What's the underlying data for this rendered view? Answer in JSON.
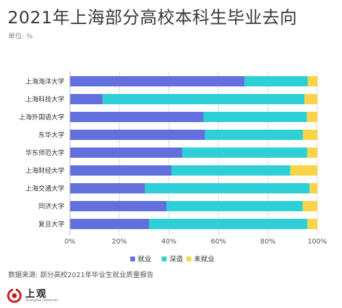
{
  "header": {
    "title": "2021年上海部分高校本科生毕业去向",
    "unit": "单位: %"
  },
  "footer": {
    "source": "数据来源: 部分高校2021年毕业生就业质量报告",
    "logo_text": "上观",
    "logo_sub": "Shanghai Observer"
  },
  "colors": {
    "employment": "#6270de",
    "further_study": "#2ecfd6",
    "unemployed": "#f9d448"
  },
  "chart_data": {
    "type": "bar",
    "orientation": "horizontal",
    "stacked": true,
    "categories": [
      "上海海洋大学",
      "上海科技大学",
      "上海外国语大学",
      "东华大学",
      "华东师范大学",
      "上海财经大学",
      "上海交通大学",
      "同济大学",
      "复旦大学"
    ],
    "series": [
      {
        "name": "就业",
        "values": [
          70.6,
          13.2,
          54.0,
          54.6,
          45.4,
          41.1,
          30.4,
          39.1,
          32.0
        ]
      },
      {
        "name": "深造",
        "values": [
          25.5,
          81.6,
          41.8,
          39.6,
          50.5,
          48.0,
          66.5,
          55.0,
          64.0
        ]
      },
      {
        "name": "未就业",
        "values": [
          3.9,
          5.2,
          4.2,
          5.8,
          4.1,
          10.9,
          3.1,
          5.9,
          4.0
        ]
      }
    ],
    "xlim": [
      0,
      100
    ],
    "xticks": [
      "0%",
      "20%",
      "40%",
      "60%",
      "80%",
      "100%"
    ],
    "legend_position": "bottom",
    "grid": true
  }
}
